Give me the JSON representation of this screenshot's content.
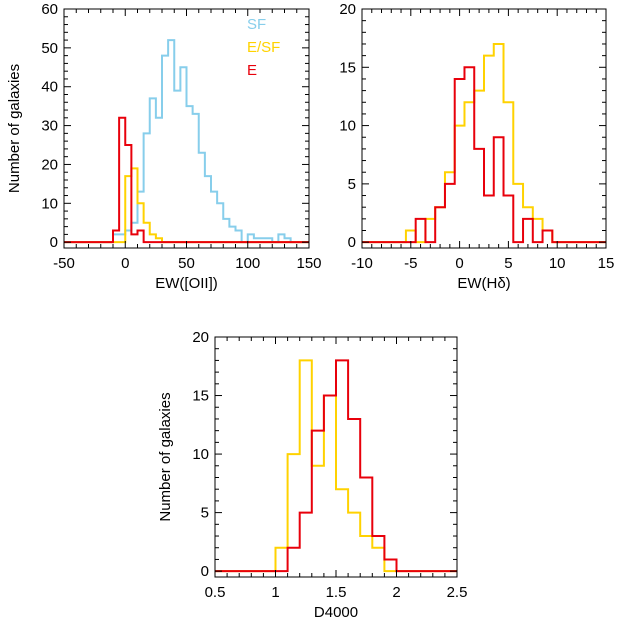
{
  "colors": {
    "SF": "#87CEEB",
    "E/SF": "#FFD200",
    "E": "#E8000B",
    "axis": "#000000"
  },
  "chart_data": [
    {
      "type": "histogram",
      "xlabel": "EW([OII])",
      "ylabel": "Number of galaxies",
      "xlim": [
        -50,
        150
      ],
      "ylim": [
        -1.5,
        60
      ],
      "xticks": [
        -50,
        0,
        50,
        100,
        150
      ],
      "yticks": [
        0,
        10,
        20,
        30,
        40,
        50,
        60
      ],
      "legend": {
        "placement": "top-right",
        "entries": [
          "SF",
          "E/SF",
          "E"
        ]
      },
      "series": [
        {
          "name": "SF",
          "color": "#87CEEB",
          "edges": [
            -15,
            -10,
            -5,
            0,
            5,
            10,
            15,
            20,
            25,
            30,
            35,
            40,
            45,
            50,
            55,
            60,
            65,
            70,
            75,
            80,
            85,
            90,
            95,
            100,
            105,
            110,
            115,
            120,
            125,
            130,
            135,
            140
          ],
          "counts": [
            0,
            2,
            2,
            3,
            5,
            13,
            28,
            37,
            32,
            48,
            52,
            39,
            45,
            35,
            33,
            23,
            17,
            13,
            10,
            6,
            4,
            3,
            0,
            2,
            1,
            1,
            1,
            0,
            2,
            1,
            0
          ]
        },
        {
          "name": "E/SF",
          "color": "#FFD200",
          "edges": [
            -10,
            -5,
            0,
            5,
            10,
            15,
            20,
            25,
            30
          ],
          "counts": [
            0,
            0,
            17,
            19,
            10,
            5,
            2,
            1
          ]
        },
        {
          "name": "E",
          "color": "#E8000B",
          "edges": [
            -15,
            -10,
            -5,
            0,
            5,
            10,
            15,
            20
          ],
          "counts": [
            0,
            3,
            32,
            25,
            2,
            3,
            0
          ]
        }
      ]
    },
    {
      "type": "histogram",
      "xlabel": "EW(Hδ)",
      "ylabel": "",
      "xlim": [
        -10,
        15
      ],
      "ylim": [
        -0.5,
        20
      ],
      "xticks": [
        -10,
        -5,
        0,
        5,
        10,
        15
      ],
      "yticks": [
        0,
        5,
        10,
        15,
        20
      ],
      "series": [
        {
          "name": "E/SF",
          "color": "#FFD200",
          "edges": [
            -5.5,
            -4.5,
            -3.5,
            -2.5,
            -1.5,
            -0.5,
            0.5,
            1.5,
            2.5,
            3.5,
            4.5,
            5.5,
            6.5,
            7.5,
            8.5,
            9.5,
            10.5
          ],
          "counts": [
            1,
            0,
            2,
            3,
            6,
            10,
            12,
            13,
            16,
            17,
            12,
            5,
            3,
            2,
            1,
            0
          ]
        },
        {
          "name": "E",
          "color": "#E8000B",
          "edges": [
            -4.5,
            -3.5,
            -2.5,
            -1.5,
            -0.5,
            0.5,
            1.5,
            2.5,
            3.5,
            4.5,
            5.5,
            6.5,
            7.5,
            8.5,
            9.5
          ],
          "counts": [
            2,
            0,
            3,
            5,
            14,
            15,
            8,
            4,
            9,
            4,
            0,
            2,
            0,
            1
          ]
        }
      ]
    },
    {
      "type": "histogram",
      "xlabel": "D4000",
      "ylabel": "Number of galaxies",
      "xlim": [
        0.5,
        2.5
      ],
      "ylim": [
        -0.5,
        20
      ],
      "xticks": [
        0.5,
        1.0,
        1.5,
        2.0,
        2.5
      ],
      "yticks": [
        0,
        5,
        10,
        15,
        20
      ],
      "series": [
        {
          "name": "E/SF",
          "color": "#FFD200",
          "edges": [
            1.0,
            1.1,
            1.2,
            1.3,
            1.4,
            1.5,
            1.6,
            1.7,
            1.8,
            1.9,
            2.0
          ],
          "counts": [
            2,
            10,
            18,
            9,
            15,
            7,
            5,
            3,
            2,
            0
          ]
        },
        {
          "name": "E",
          "color": "#E8000B",
          "edges": [
            1.1,
            1.2,
            1.3,
            1.4,
            1.5,
            1.6,
            1.7,
            1.8,
            1.9,
            2.0
          ],
          "counts": [
            2,
            5,
            12,
            15,
            18,
            13,
            8,
            3,
            1
          ]
        }
      ]
    }
  ]
}
